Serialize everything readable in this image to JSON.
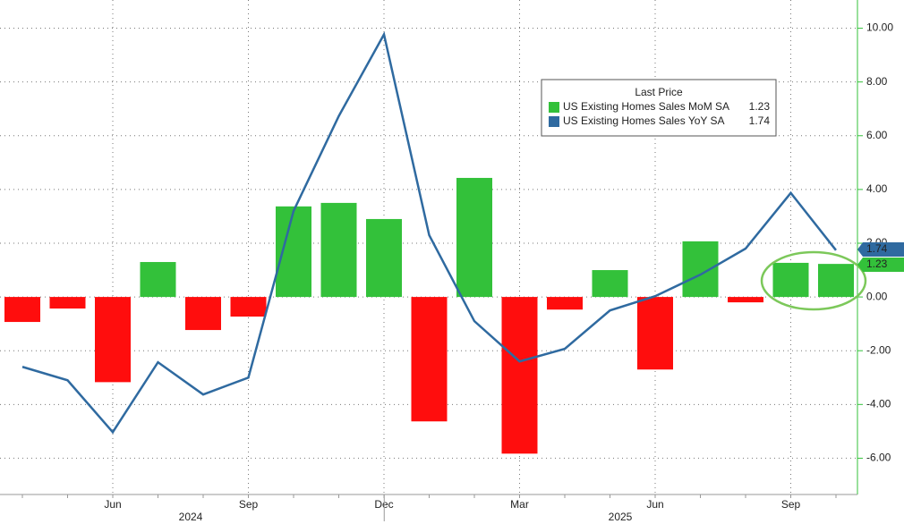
{
  "chart_data": {
    "type": "bar_line",
    "categories": [
      null,
      null,
      "Jun",
      null,
      null,
      "Sep",
      null,
      null,
      "Dec",
      null,
      null,
      "Mar",
      null,
      null,
      "Jun",
      null,
      null,
      "Sep",
      null
    ],
    "year_labels": [
      "2024",
      "2025"
    ],
    "legend_title": "Last Price",
    "series": [
      {
        "name": "US Existing Homes Sales MoM SA",
        "type": "bar",
        "color": "#33c13a",
        "negative_color": "#ff0d0d",
        "values": [
          -0.93,
          -0.43,
          -3.17,
          1.3,
          -1.23,
          -0.73,
          3.37,
          3.5,
          2.9,
          -4.63,
          4.43,
          -5.83,
          -0.47,
          1.0,
          -2.7,
          2.07,
          -0.2,
          1.27,
          1.23
        ],
        "last_label": "1.23"
      },
      {
        "name": "US Existing Homes Sales YoY SA",
        "type": "line",
        "color": "#2f6aa0",
        "values": [
          -2.6,
          -3.1,
          -5.03,
          -2.43,
          -3.63,
          -3.0,
          3.2,
          6.73,
          9.77,
          2.3,
          -0.9,
          -2.4,
          -1.93,
          -0.5,
          0.03,
          0.83,
          1.8,
          3.87,
          1.74
        ],
        "last_label": "1.74"
      }
    ],
    "ylim": [
      -7.35,
      11.05
    ],
    "yticks": [
      {
        "value": -6,
        "label": "-6.00"
      },
      {
        "value": -4,
        "label": "-4.00"
      },
      {
        "value": -2,
        "label": "-2.00"
      },
      {
        "value": 0,
        "label": "0.00"
      },
      {
        "value": 2,
        "label": "2.00"
      },
      {
        "value": 4,
        "label": "4.00"
      },
      {
        "value": 6,
        "label": "6.00"
      },
      {
        "value": 8,
        "label": "8.00"
      },
      {
        "value": 10,
        "label": "10.00"
      }
    ],
    "grid": true
  }
}
